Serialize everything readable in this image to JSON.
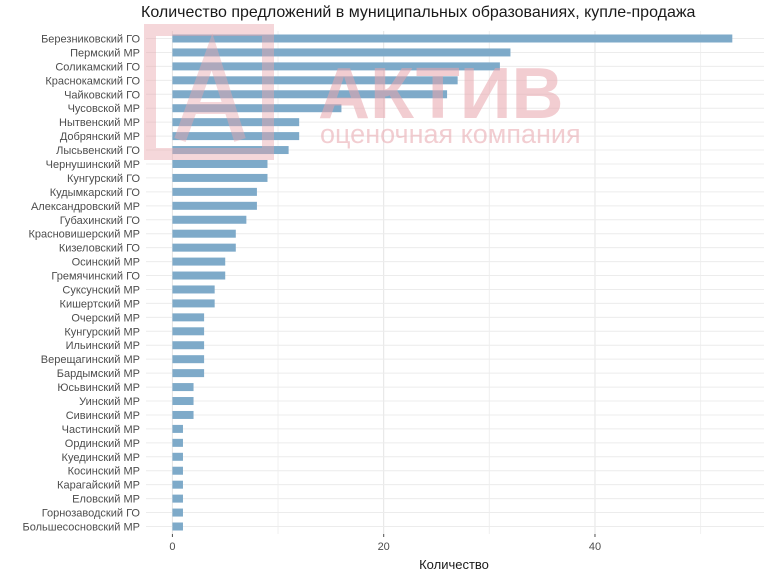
{
  "chart_data": {
    "type": "bar",
    "orientation": "horizontal",
    "title": "Количество предложений в муниципальных образованиях, купле-продажа",
    "xlabel": "Количество",
    "ylabel": "",
    "xlim": [
      -2.5,
      56
    ],
    "xticks": [
      0,
      20,
      40
    ],
    "grid": true,
    "bar_color": "#7eaac9",
    "categories": [
      "Березниковский ГО",
      "Пермский МР",
      "Соликамский ГО",
      "Краснокамский ГО",
      "Чайковский ГО",
      "Чусовской МР",
      "Нытвенский МР",
      "Добрянский МР",
      "Лысьвенский ГО",
      "Чернушинский МР",
      "Кунгурский ГО",
      "Кудымкарский ГО",
      "Александровский МР",
      "Губахинский ГО",
      "Красновишерский МР",
      "Кизеловский ГО",
      "Осинский МР",
      "Гремячинский ГО",
      "Суксунский МР",
      "Кишертский МР",
      "Очерский МР",
      "Кунгурский МР",
      "Ильинский МР",
      "Верещагинский МР",
      "Бардымский МР",
      "Юсьвинский МР",
      "Уинский МР",
      "Сивинский МР",
      "Частинский МР",
      "Ординский МР",
      "Куединский МР",
      "Косинский МР",
      "Карагайский МР",
      "Еловский МР",
      "Горнозаводский ГО",
      "Большесосновский МР"
    ],
    "values": [
      53,
      32,
      31,
      27,
      26,
      16,
      12,
      12,
      11,
      9,
      9,
      8,
      8,
      7,
      6,
      6,
      5,
      5,
      4,
      4,
      3,
      3,
      3,
      3,
      3,
      2,
      2,
      2,
      1,
      1,
      1,
      1,
      1,
      1,
      1,
      1
    ]
  },
  "watermark": {
    "brand": "АКТИВ",
    "tagline": "оценочная компания",
    "color": "#e8a6ad"
  }
}
